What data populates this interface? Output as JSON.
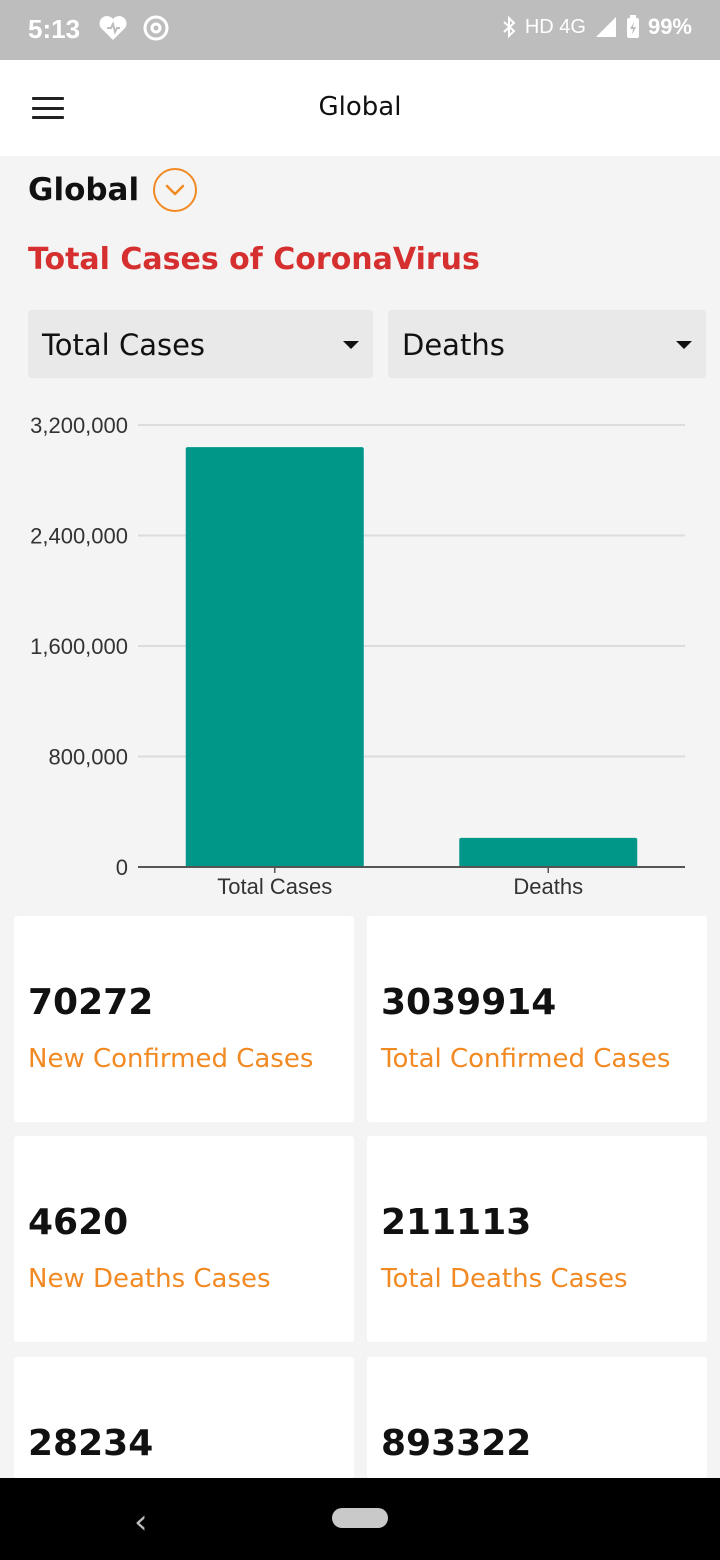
{
  "status_bar": {
    "time": "5:13",
    "signal_text": "HD 4G",
    "battery": "99%"
  },
  "app_bar": {
    "title": "Global"
  },
  "region": {
    "label": "Global"
  },
  "section": {
    "title": "Total Cases of CoronaVirus"
  },
  "selectors": {
    "first": "Total Cases",
    "second": "Deaths"
  },
  "chart_data": {
    "type": "bar",
    "categories": [
      "Total Cases",
      "Deaths"
    ],
    "values": [
      3039914,
      211113
    ],
    "ylim": [
      0,
      3200000
    ],
    "y_ticks": [
      0,
      800000,
      1600000,
      2400000,
      3200000
    ],
    "y_tick_labels": [
      "0",
      "800,000",
      "1,600,000",
      "2,400,000",
      "3,200,000"
    ],
    "grid": true,
    "bar_color": "#009688"
  },
  "cards": [
    {
      "value": "70272",
      "label": "New Confirmed Cases"
    },
    {
      "value": "3039914",
      "label": "Total Confirmed Cases"
    },
    {
      "value": "4620",
      "label": "New Deaths Cases"
    },
    {
      "value": "211113",
      "label": "Total Deaths Cases"
    },
    {
      "value": "28234",
      "label": ""
    },
    {
      "value": "893322",
      "label": ""
    }
  ],
  "colors": {
    "accent": "#f28a24",
    "title_red": "#d62f2f",
    "bar": "#009688"
  },
  "icons": {
    "menu": "hamburger-menu-icon",
    "region_dropdown": "chevron-down-icon",
    "select_caret": "caret-down-icon",
    "nav_back": "back-icon",
    "nav_home": "home-pill-icon"
  }
}
